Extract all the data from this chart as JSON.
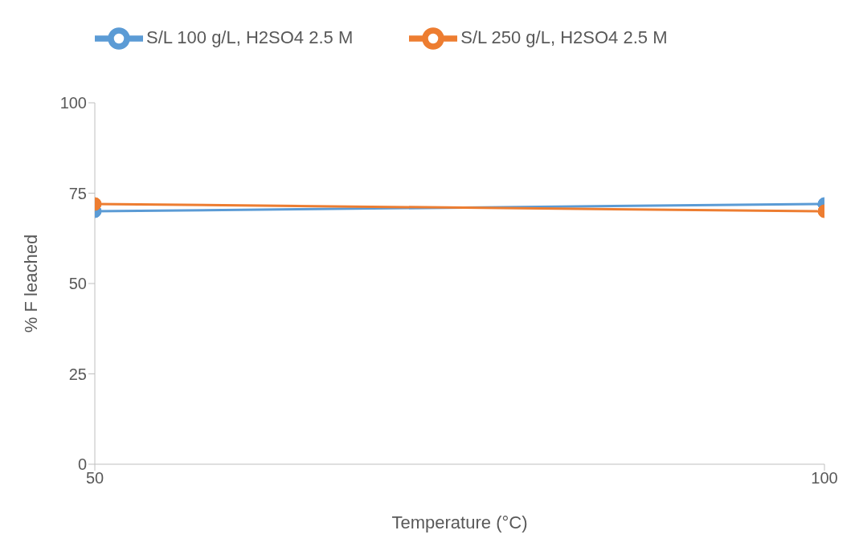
{
  "chart_data": {
    "type": "line",
    "xlabel": "Temperature (°C)",
    "ylabel": "% F leached",
    "x": [
      50,
      100
    ],
    "series": [
      {
        "name": "S/L 100 g/L, H2SO4 2.5 M",
        "color": "#5b9bd5",
        "values": [
          70,
          72
        ]
      },
      {
        "name": "S/L 250 g/L, H2SO4 2.5 M",
        "color": "#ed7d31",
        "values": [
          72,
          70
        ]
      }
    ],
    "xlim": [
      50,
      100
    ],
    "xticks": [
      50,
      100
    ],
    "ylim": [
      0,
      100
    ],
    "yticks": [
      0,
      25,
      50,
      75,
      100
    ],
    "grid": false,
    "legend": "top",
    "marker": "circle",
    "line_style": "solid"
  }
}
